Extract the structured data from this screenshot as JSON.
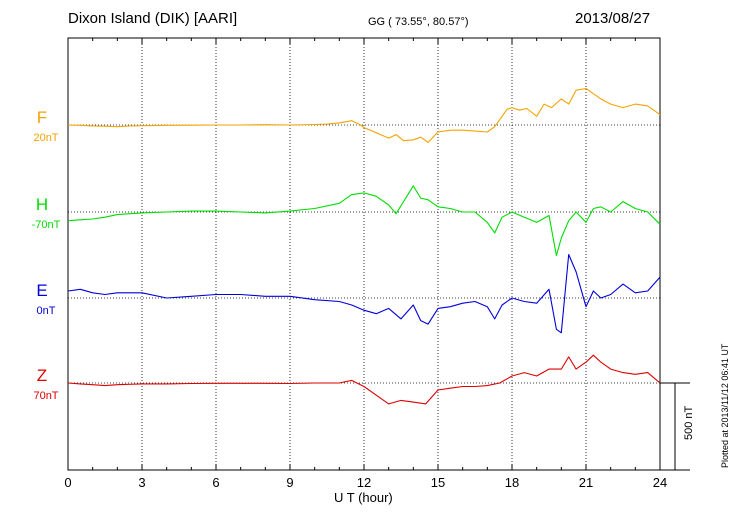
{
  "header": {
    "station": "Dixon Island (DIK)  [AARI]",
    "coords": "GG ( 73.55°,  80.57°)",
    "date": "2013/08/27"
  },
  "footer": {
    "note": "Plotted at 2013/11/12 06:41 UT"
  },
  "scale": {
    "label": "500 nT"
  },
  "chart_data": {
    "type": "line",
    "title": "",
    "xlabel": "U T (hour)",
    "xlim": [
      0,
      24
    ],
    "xticks": [
      "0",
      "3",
      "6",
      "9",
      "12",
      "15",
      "18",
      "21",
      "24"
    ],
    "grid": true,
    "series": [
      {
        "name": "F",
        "base": "20nT",
        "color": "#f4a300",
        "x": [
          0,
          0.5,
          1,
          1.5,
          2,
          2.5,
          3,
          4,
          5,
          6,
          7,
          8,
          9,
          10,
          10.5,
          11,
          11.5,
          11.8,
          12,
          12.5,
          13,
          13.3,
          13.6,
          14,
          14.3,
          14.6,
          15,
          15.5,
          16,
          16.5,
          17,
          17.3,
          17.6,
          17.8,
          18,
          18.3,
          18.6,
          19,
          19.3,
          19.6,
          20,
          20.3,
          20.6,
          21,
          21.3,
          21.6,
          22,
          22.5,
          23,
          23.5,
          24
        ],
        "values": [
          0,
          -2,
          -5,
          -7,
          -10,
          -6,
          -4,
          -2,
          -1,
          0,
          0,
          2,
          0,
          3,
          5,
          12,
          25,
          5,
          -15,
          -45,
          -75,
          -55,
          -90,
          -85,
          -70,
          -100,
          -40,
          -30,
          -30,
          -35,
          -40,
          -10,
          50,
          90,
          100,
          85,
          95,
          50,
          120,
          100,
          150,
          120,
          200,
          210,
          180,
          150,
          120,
          100,
          120,
          110,
          60
        ]
      },
      {
        "name": "H",
        "base": "-70nT",
        "color": "#00dd00",
        "x": [
          0,
          0.5,
          1,
          1.5,
          2,
          3,
          4,
          5,
          6,
          7,
          8,
          9,
          10,
          11,
          11.5,
          12,
          12.5,
          13,
          13.3,
          13.6,
          14,
          14.3,
          14.6,
          15,
          15.5,
          16,
          16.5,
          17,
          17.3,
          17.6,
          18,
          18.5,
          19,
          19.5,
          19.8,
          20,
          20.3,
          20.6,
          21,
          21.3,
          21.6,
          22,
          22.5,
          23,
          23.5,
          24
        ],
        "values": [
          -50,
          -45,
          -40,
          -30,
          -15,
          -5,
          0,
          5,
          5,
          0,
          -5,
          5,
          20,
          50,
          100,
          110,
          90,
          40,
          -10,
          60,
          150,
          80,
          70,
          30,
          20,
          0,
          0,
          -60,
          -120,
          -30,
          0,
          -30,
          -60,
          -20,
          -250,
          -150,
          -50,
          0,
          -60,
          20,
          30,
          0,
          60,
          20,
          0,
          -70
        ]
      },
      {
        "name": "E",
        "base": "0nT",
        "color": "#0000dd",
        "x": [
          0,
          0.5,
          1,
          1.5,
          2,
          3,
          4,
          5,
          6,
          7,
          8,
          9,
          10,
          11,
          11.5,
          12,
          12.5,
          13,
          13.5,
          14,
          14.3,
          14.6,
          15,
          15.5,
          16,
          16.5,
          17,
          17.3,
          17.6,
          18,
          18.5,
          19,
          19.5,
          19.8,
          20,
          20.3,
          20.6,
          21,
          21.3,
          21.6,
          22,
          22.5,
          23,
          23.5,
          24
        ],
        "values": [
          40,
          50,
          30,
          20,
          30,
          30,
          0,
          10,
          20,
          20,
          10,
          10,
          -10,
          -20,
          -40,
          -70,
          -90,
          -60,
          -120,
          -40,
          -130,
          -150,
          -60,
          -50,
          -30,
          -20,
          -50,
          -120,
          -40,
          0,
          -20,
          -30,
          50,
          -180,
          -200,
          250,
          150,
          -50,
          40,
          0,
          20,
          80,
          30,
          40,
          120
        ]
      },
      {
        "name": "Z",
        "base": "70nT",
        "color": "#dd0000",
        "x": [
          0,
          0.5,
          1,
          1.5,
          2,
          3,
          4,
          5,
          6,
          7,
          8,
          9,
          10,
          11,
          11.5,
          12,
          12.5,
          13,
          13.5,
          14,
          14.5,
          15,
          15.5,
          16,
          16.5,
          17,
          17.5,
          18,
          18.5,
          19,
          19.5,
          20,
          20.3,
          20.6,
          21,
          21.3,
          21.6,
          22,
          22.5,
          23,
          23.5,
          24
        ],
        "values": [
          0,
          -5,
          -10,
          -15,
          -10,
          -5,
          -5,
          -3,
          -2,
          -2,
          -2,
          -3,
          0,
          0,
          15,
          -20,
          -70,
          -120,
          -100,
          -110,
          -120,
          -40,
          -30,
          -20,
          -20,
          -15,
          0,
          40,
          60,
          40,
          80,
          80,
          150,
          80,
          120,
          160,
          120,
          80,
          60,
          50,
          60,
          0
        ]
      }
    ]
  }
}
